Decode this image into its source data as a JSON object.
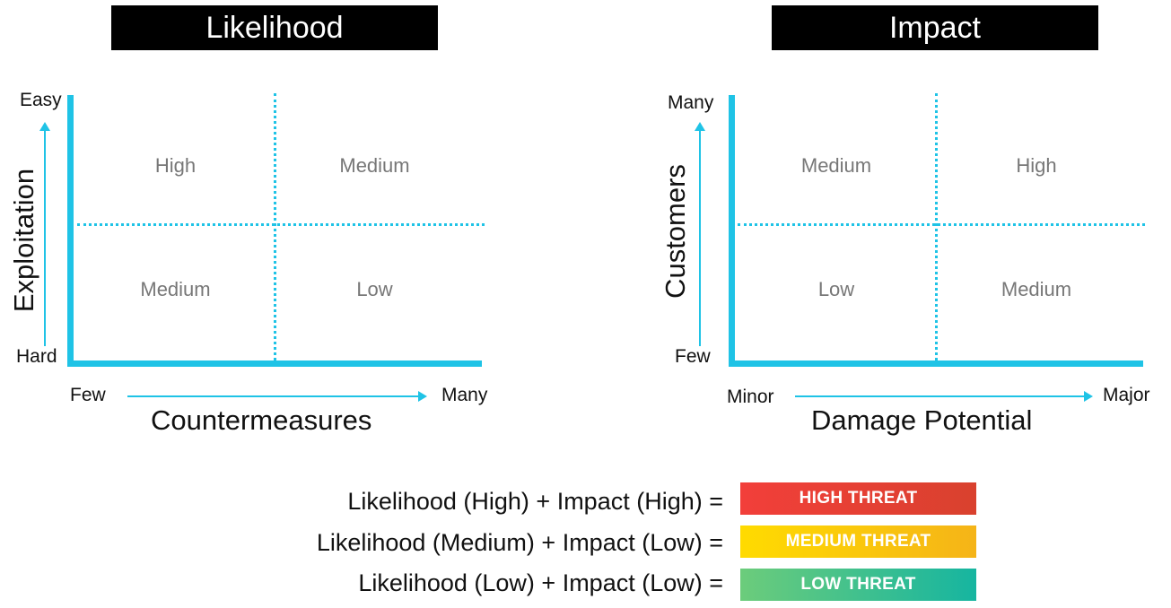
{
  "likelihood": {
    "title": "Likelihood",
    "y_axis_title": "Exploitation",
    "y_top": "Easy",
    "y_bottom": "Hard",
    "x_axis_title": "Countermeasures",
    "x_left": "Few",
    "x_right": "Many",
    "cells": {
      "top_left": "High",
      "top_right": "Medium",
      "bottom_left": "Medium",
      "bottom_right": "Low"
    }
  },
  "impact": {
    "title": "Impact",
    "y_axis_title": "Customers",
    "y_top": "Many",
    "y_bottom": "Few",
    "x_axis_title": "Damage Potential",
    "x_left": "Minor",
    "x_right": "Major",
    "cells": {
      "top_left": "Medium",
      "top_right": "High",
      "bottom_left": "Low",
      "bottom_right": "Medium"
    }
  },
  "legend": [
    {
      "formula": "Likelihood (High) + Impact (High) =",
      "badge": "HIGH THREAT"
    },
    {
      "formula": "Likelihood (Medium) + Impact (Low) =",
      "badge": "MEDIUM THREAT"
    },
    {
      "formula": "Likelihood (Low) + Impact (Low) =",
      "badge": "LOW THREAT"
    }
  ],
  "colors": {
    "axis": "#1fc3e6",
    "high_threat": "#e8403a",
    "medium_threat": "#fbc90e",
    "low_threat": "#3bbf8c"
  }
}
